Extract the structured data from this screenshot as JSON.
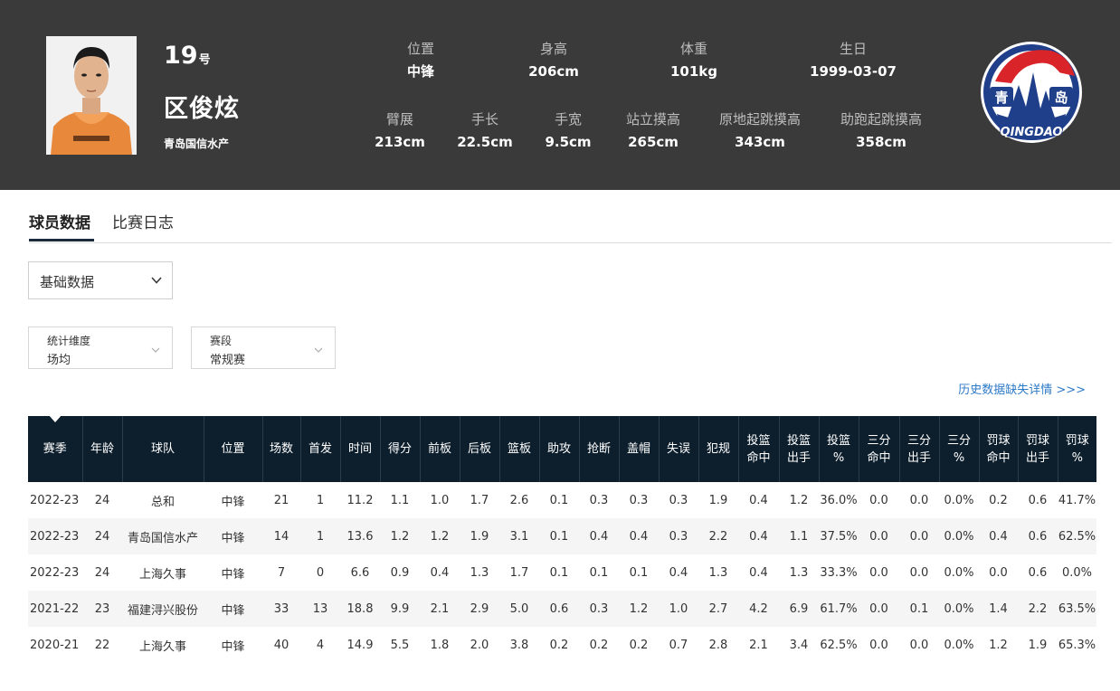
{
  "player": {
    "number": "19",
    "number_suffix": "号",
    "name": "区俊炫",
    "team": "青岛国信水产"
  },
  "info_row1": [
    {
      "label": "位置",
      "value": "中锋"
    },
    {
      "label": "身高",
      "value": "206cm"
    },
    {
      "label": "体重",
      "value": "101kg"
    },
    {
      "label": "生日",
      "value": "1999-03-07"
    }
  ],
  "info_row2": [
    {
      "label": "臂展",
      "value": "213cm"
    },
    {
      "label": "手长",
      "value": "22.5cm"
    },
    {
      "label": "手宽",
      "value": "9.5cm"
    },
    {
      "label": "站立摸高",
      "value": "265cm"
    },
    {
      "label": "原地起跳摸高",
      "value": "343cm"
    },
    {
      "label": "助跑起跳摸高",
      "value": "358cm"
    }
  ],
  "logo": {
    "left_text": "青",
    "right_text": "岛",
    "bottom_text": "QINGDAO",
    "primary": "#1f3f8a",
    "accent": "#d9252a"
  },
  "tabs": [
    {
      "label": "球员数据",
      "active": true
    },
    {
      "label": "比赛日志",
      "active": false
    }
  ],
  "data_type_select": {
    "value": "基础数据"
  },
  "filters": [
    {
      "label": "统计维度",
      "value": "场均"
    },
    {
      "label": "赛段",
      "value": "常规赛"
    }
  ],
  "history_link": "历史数据缺失详情 >>>",
  "table": {
    "headers": [
      [
        "赛季"
      ],
      [
        "年龄"
      ],
      [
        "球队"
      ],
      [
        "位置"
      ],
      [
        "场数"
      ],
      [
        "首发"
      ],
      [
        "时间"
      ],
      [
        "得分"
      ],
      [
        "前板"
      ],
      [
        "后板"
      ],
      [
        "篮板"
      ],
      [
        "助攻"
      ],
      [
        "抢断"
      ],
      [
        "盖帽"
      ],
      [
        "失误"
      ],
      [
        "犯规"
      ],
      [
        "投篮",
        "命中"
      ],
      [
        "投篮",
        "出手"
      ],
      [
        "投篮",
        "%"
      ],
      [
        "三分",
        "命中"
      ],
      [
        "三分",
        "出手"
      ],
      [
        "三分",
        "%"
      ],
      [
        "罚球",
        "命中"
      ],
      [
        "罚球",
        "出手"
      ],
      [
        "罚球",
        "%"
      ]
    ],
    "rows": [
      [
        "2022-23",
        "24",
        "总和",
        "中锋",
        "21",
        "1",
        "11.2",
        "1.1",
        "1.0",
        "1.7",
        "2.6",
        "0.1",
        "0.3",
        "0.3",
        "0.3",
        "1.9",
        "0.4",
        "1.2",
        "36.0%",
        "0.0",
        "0.0",
        "0.0%",
        "0.2",
        "0.6",
        "41.7%"
      ],
      [
        "2022-23",
        "24",
        "青岛国信水产",
        "中锋",
        "14",
        "1",
        "13.6",
        "1.2",
        "1.2",
        "1.9",
        "3.1",
        "0.1",
        "0.4",
        "0.4",
        "0.3",
        "2.2",
        "0.4",
        "1.1",
        "37.5%",
        "0.0",
        "0.0",
        "0.0%",
        "0.4",
        "0.6",
        "62.5%"
      ],
      [
        "2022-23",
        "24",
        "上海久事",
        "中锋",
        "7",
        "0",
        "6.6",
        "0.9",
        "0.4",
        "1.3",
        "1.7",
        "0.1",
        "0.1",
        "0.1",
        "0.4",
        "1.3",
        "0.4",
        "1.3",
        "33.3%",
        "0.0",
        "0.0",
        "0.0%",
        "0.0",
        "0.6",
        "0.0%"
      ],
      [
        "2021-22",
        "23",
        "福建浔兴股份",
        "中锋",
        "33",
        "13",
        "18.8",
        "9.9",
        "2.1",
        "2.9",
        "5.0",
        "0.6",
        "0.3",
        "1.2",
        "1.0",
        "2.7",
        "4.2",
        "6.9",
        "61.7%",
        "0.0",
        "0.1",
        "0.0%",
        "1.4",
        "2.2",
        "63.5%"
      ],
      [
        "2020-21",
        "22",
        "上海久事",
        "中锋",
        "40",
        "4",
        "14.9",
        "5.5",
        "1.8",
        "2.0",
        "3.8",
        "0.2",
        "0.2",
        "0.2",
        "0.7",
        "2.8",
        "2.1",
        "3.4",
        "62.5%",
        "0.0",
        "0.0",
        "0.0%",
        "1.2",
        "1.9",
        "65.3%"
      ]
    ]
  }
}
